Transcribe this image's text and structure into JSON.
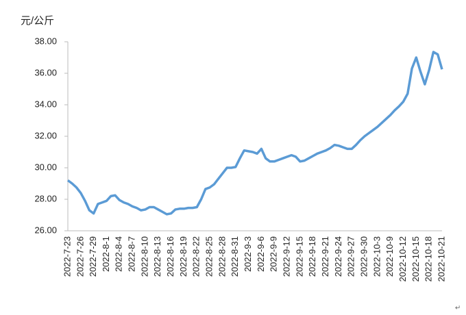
{
  "chart_data": {
    "type": "line",
    "y_axis_label": "元/公斤",
    "end_mark": "↵",
    "categories": [
      "2022-7-23",
      null,
      null,
      "2022-7-26",
      null,
      null,
      "2022-7-29",
      null,
      null,
      "2022-8-1",
      null,
      null,
      "2022-8-4",
      null,
      null,
      "2022-8-7",
      null,
      null,
      "2022-8-10",
      null,
      null,
      "2022-8-13",
      null,
      null,
      "2022-8-16",
      null,
      null,
      "2022-8-19",
      null,
      null,
      "2022-8-22",
      null,
      null,
      "2022-8-25",
      null,
      null,
      "2022-8-28",
      null,
      null,
      "2022-8-31",
      null,
      null,
      "2022-9-3",
      null,
      null,
      "2022-9-6",
      null,
      null,
      "2022-9-9",
      null,
      null,
      "2022-9-12",
      null,
      null,
      "2022-9-15",
      null,
      null,
      "2022-9-18",
      null,
      null,
      "2022-9-21",
      null,
      null,
      "2022-9-24",
      null,
      null,
      "2022-9-27",
      null,
      null,
      "2022-9-30",
      null,
      null,
      "2022-10-3",
      null,
      null,
      "2022-10-9",
      null,
      null,
      "2022-10-12",
      null,
      null,
      "2022-10-15",
      null,
      null,
      "2022-10-18",
      null,
      null,
      "2022-10-21"
    ],
    "series": [
      {
        "color": "#5b9bd5",
        "values": [
          29.2,
          29.0,
          28.75,
          28.4,
          27.9,
          27.3,
          27.1,
          27.7,
          27.8,
          27.9,
          28.2,
          28.25,
          27.95,
          27.8,
          27.7,
          27.55,
          27.45,
          27.3,
          27.35,
          27.5,
          27.5,
          27.35,
          27.2,
          27.05,
          27.1,
          27.35,
          27.4,
          27.4,
          27.45,
          27.45,
          27.5,
          28.0,
          28.65,
          28.75,
          28.95,
          29.3,
          29.65,
          30.0,
          30.0,
          30.05,
          30.6,
          31.1,
          31.05,
          31.0,
          30.9,
          31.2,
          30.6,
          30.4,
          30.4,
          30.5,
          30.6,
          30.7,
          30.8,
          30.7,
          30.4,
          30.45,
          30.6,
          30.75,
          30.9,
          31.0,
          31.1,
          31.25,
          31.45,
          31.4,
          31.3,
          31.2,
          31.2,
          31.45,
          31.75,
          32.0,
          32.2,
          32.4,
          32.6,
          32.85,
          33.1,
          33.35,
          33.65,
          33.9,
          34.2,
          34.7,
          36.3,
          37.0,
          36.1,
          35.3,
          36.2,
          37.35,
          37.2,
          36.25
        ]
      }
    ],
    "ylim": [
      26,
      38
    ],
    "yticks": [
      {
        "value": 26,
        "label": "26.00"
      },
      {
        "value": 28,
        "label": "28.00"
      },
      {
        "value": 30,
        "label": "30.00"
      },
      {
        "value": 32,
        "label": "32.00"
      },
      {
        "value": 34,
        "label": "34.00"
      },
      {
        "value": 36,
        "label": "36.00"
      },
      {
        "value": 38,
        "label": "38.00"
      }
    ],
    "grid": false
  }
}
